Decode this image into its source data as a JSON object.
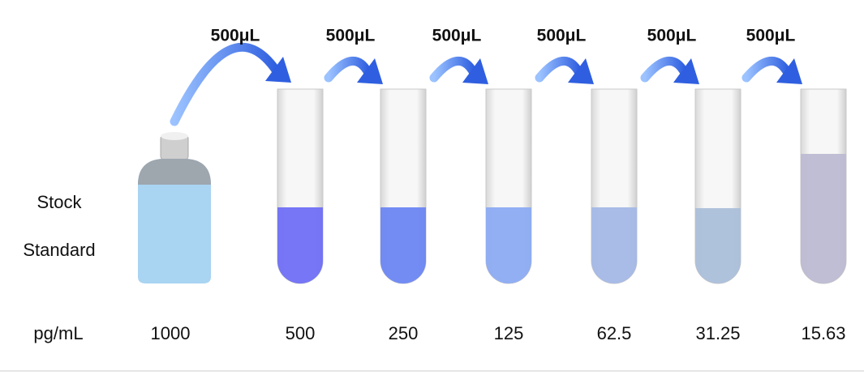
{
  "transfer_labels": [
    "500μL",
    "500μL",
    "500μL",
    "500μL",
    "500μL",
    "500μL"
  ],
  "stock": {
    "line1": "Stock",
    "line2": "Standard"
  },
  "unit": "pg/mL",
  "concentrations": [
    "1000",
    "500",
    "250",
    "125",
    "62.5",
    "31.25",
    "15.63"
  ]
}
